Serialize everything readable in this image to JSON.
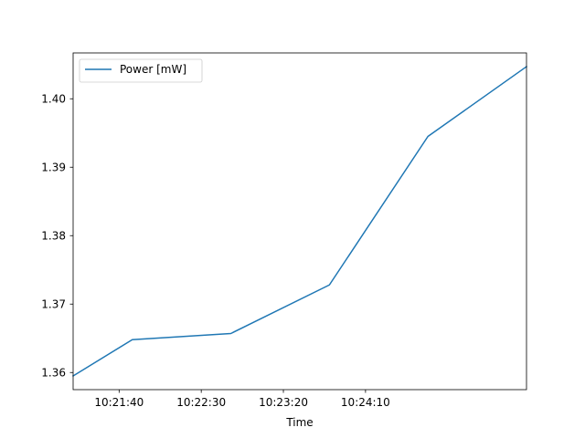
{
  "chart_data": {
    "type": "line",
    "title": "",
    "xlabel": "Time",
    "ylabel": "",
    "x": [
      "10:21:12",
      "10:21:48",
      "10:22:48",
      "10:23:48",
      "10:24:48",
      "10:25:48"
    ],
    "x_ticks": [
      "10:21:40",
      "10:22:30",
      "10:23:20",
      "10:24:10"
    ],
    "x_range": [
      "10:21:12",
      "10:25:48"
    ],
    "series": [
      {
        "name": "Power [mW]",
        "values": [
          1.3595,
          1.3648,
          1.3657,
          1.3728,
          1.3945,
          1.4047
        ],
        "color": "#1f77b4"
      }
    ],
    "y_ticks": [
      "1.36",
      "1.37",
      "1.38",
      "1.39",
      "1.40"
    ],
    "ylim": [
      1.3575,
      1.4067
    ],
    "grid": false,
    "legend_position": "top-left"
  }
}
